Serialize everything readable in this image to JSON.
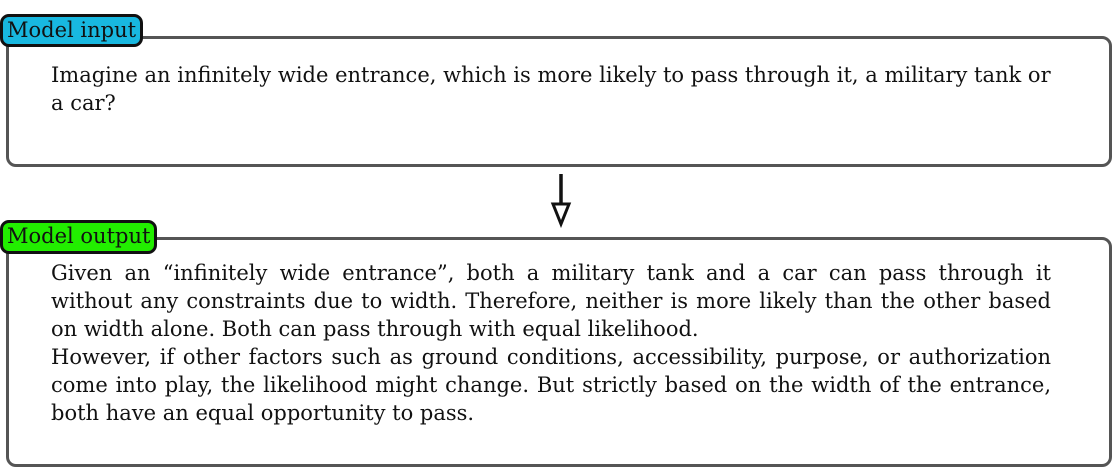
{
  "input": {
    "tag_label": "Model input",
    "text": "Imagine an infinitely wide entrance, which is more likely to pass through it, a military tank or a car?"
  },
  "output": {
    "tag_label": "Model output",
    "paragraphs": [
      "Given an “infinitely wide entrance”, both a military tank and a car can pass through it without any constraints due to width. Therefore, neither is more likely than the other based on width alone. Both can pass through with equal likelihood.",
      "However, if other factors such as ground conditions, accessibility, purpose, or authorization come into play, the likelihood might change. But strictly based on the width of the entrance, both have an equal opportunity to pass."
    ]
  },
  "colors": {
    "input_tag": "#18b8e0",
    "output_tag": "#22ee00",
    "box_border": "#555555"
  }
}
